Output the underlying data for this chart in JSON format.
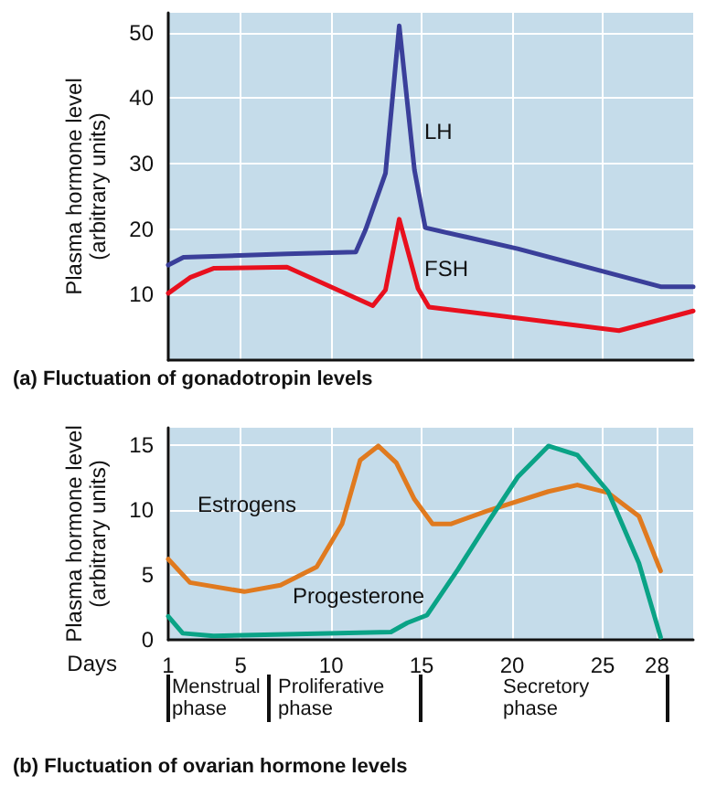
{
  "chart_data": [
    {
      "type": "line",
      "title": "(a) Fluctuation of gonadotropin levels",
      "ylabel": "Plasma hormone level (arbitrary units)",
      "xlim": [
        1,
        30
      ],
      "xticks": [
        {
          "value": 5,
          "label": null
        },
        {
          "value": 10,
          "label": null
        },
        {
          "value": 15,
          "label": null
        },
        {
          "value": 20,
          "label": null
        },
        {
          "value": 25,
          "label": null
        }
      ],
      "ylim": [
        0,
        53
      ],
      "yticks": [
        10,
        20,
        30,
        40,
        50
      ],
      "tick_labels": "y",
      "grid": true,
      "legend": false,
      "marker": "none",
      "line_style": "solid",
      "series": [
        {
          "name": "LH",
          "color": "#3a3f9a",
          "x": [
            1,
            1.84,
            7.56,
            11.36,
            11.9,
            13.0,
            13.76,
            14.6,
            15.2,
            20.3,
            28.2,
            30
          ],
          "values": [
            14.5,
            15.7,
            16.2,
            16.5,
            19.9,
            28.5,
            51,
            29,
            20.2,
            17,
            11.2,
            11.2
          ]
        },
        {
          "name": "FSH",
          "color": "#e8101e",
          "x": [
            1,
            2.2,
            3.5,
            7.56,
            12.3,
            13.0,
            13.76,
            14.8,
            15.4,
            25.9,
            30
          ],
          "values": [
            10.2,
            12.6,
            14.0,
            14.2,
            8.3,
            10.7,
            21.5,
            10.9,
            8.1,
            4.5,
            7.5
          ]
        }
      ]
    },
    {
      "type": "line",
      "title": "(b) Fluctuation of ovarian hormone levels",
      "xlabel": "Days",
      "ylabel": "Plasma hormone level (arbitrary units)",
      "xlim": [
        1,
        30
      ],
      "xticks": [
        1,
        5,
        10,
        15,
        20,
        25,
        28
      ],
      "ylim": [
        0,
        16.3
      ],
      "yticks": [
        0,
        5,
        10,
        15
      ],
      "grid": true,
      "legend": false,
      "marker": "none",
      "line_style": "solid",
      "annotations": [
        "Menstrual phase",
        "Proliferative phase",
        "Secretory phase"
      ],
      "series": [
        {
          "name": "Estrogens",
          "color": "#e07a1f",
          "x": [
            1,
            2.2,
            5.2,
            7.2,
            9.2,
            10.6,
            11.6,
            12.6,
            13.6,
            14.6,
            15.6,
            16.6,
            18.6,
            22.0,
            23.6,
            25.3,
            27.0,
            28.2
          ],
          "values": [
            6.2,
            4.4,
            3.7,
            4.2,
            5.6,
            8.9,
            13.8,
            14.9,
            13.6,
            10.8,
            8.9,
            8.9,
            9.9,
            11.4,
            11.9,
            11.3,
            9.5,
            5.3
          ]
        },
        {
          "name": "Progesterone",
          "color": "#0aa386",
          "x": [
            1,
            1.8,
            3.5,
            6.9,
            13.3,
            14.2,
            15.3,
            17.0,
            18.6,
            20.3,
            22.0,
            23.6,
            25.3,
            27.0,
            28.2
          ],
          "values": [
            1.8,
            0.5,
            0.3,
            0.4,
            0.6,
            1.3,
            1.9,
            5.4,
            8.9,
            12.5,
            14.9,
            14.2,
            11.4,
            5.9,
            0.2
          ]
        }
      ]
    }
  ]
}
